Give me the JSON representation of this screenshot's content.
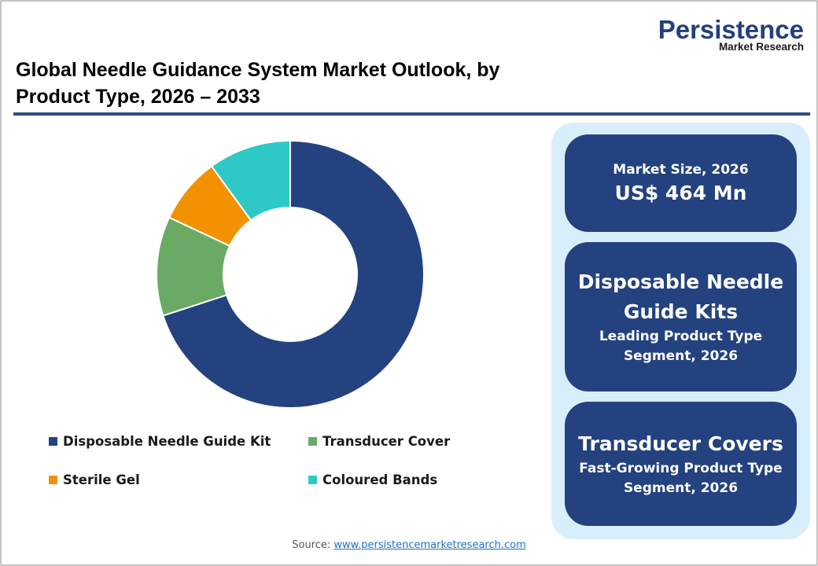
{
  "logo": {
    "name": "Persistence",
    "sub": "Market Research"
  },
  "title": "Global Needle Guidance System Market Outlook, by Product Type, 2026 – 2033",
  "colors": {
    "accent_rule": "#2c4a7e",
    "panel_bg": "#d9eefb",
    "card_bg": "#23427f"
  },
  "chart_data": {
    "type": "pie",
    "subtype": "donut",
    "title": "Global Needle Guidance System Market Outlook, by Product Type, 2026 – 2033",
    "categories": [
      "Disposable Needle Guide Kit",
      "Transducer Cover",
      "Sterile Gel",
      "Coloured Bands"
    ],
    "values": [
      70,
      12,
      8,
      10
    ],
    "unit": "% share (estimated from slice angles)",
    "colors": [
      "#23427f",
      "#6aaa64",
      "#f39200",
      "#2ec9c7"
    ],
    "start_angle": "12 o'clock",
    "direction": "clockwise",
    "legend_position": "bottom",
    "data_labels": false
  },
  "legend": [
    {
      "label": "Disposable Needle Guide Kit",
      "color": "#23427f"
    },
    {
      "label": "Transducer Cover",
      "color": "#6aaa64"
    },
    {
      "label": "Sterile Gel",
      "color": "#f39200"
    },
    {
      "label": "Coloured Bands",
      "color": "#2ec9c7"
    }
  ],
  "cards": {
    "market_size": {
      "label": "Market Size, 2026",
      "value": "US$ 464 Mn"
    },
    "leading": {
      "title_line1": "Disposable Needle",
      "title_line2": "Guide Kits",
      "sub_line1": "Leading Product Type",
      "sub_line2": "Segment, 2026"
    },
    "fastest": {
      "title": "Transducer Covers",
      "sub_line1": "Fast-Growing Product Type",
      "sub_line2": "Segment, 2026"
    }
  },
  "source": {
    "label": "Source: ",
    "link": "www.persistencemarketresearch.com"
  }
}
